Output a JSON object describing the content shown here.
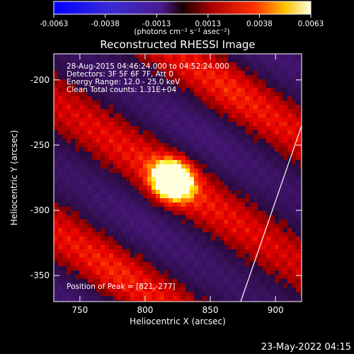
{
  "chart_data": {
    "type": "heatmap",
    "title": "Reconstructed RHESSI Image",
    "xlabel": "Heliocentric X (arcsec)",
    "ylabel": "Heliocentric Y (arcsec)",
    "xlim": [
      730,
      920
    ],
    "ylim": [
      -370,
      -180
    ],
    "x_ticks": [
      750,
      800,
      850,
      900
    ],
    "y_ticks": [
      -200,
      -250,
      -300,
      -350
    ],
    "colorbar": {
      "label": "(photons cm⁻² s⁻¹ asec⁻²)",
      "range": [
        -0.0063,
        0.0063
      ],
      "ticks": [
        "-0.0063",
        "-0.0038",
        "-0.0013",
        "0.0013",
        "0.0038",
        "0.0063"
      ]
    },
    "annotations": [
      "28-Aug-2015 04:46:24.000 to 04:52:24.000",
      "Detectors: 3F 5F 6F 7F, Att 0",
      "Energy Range: 12.0 - 25.0 keV",
      "Clean     Total counts: 1.31E+04"
    ],
    "peak": {
      "label": "Position of Peak = [821,-277]",
      "x": 821,
      "y": -277
    },
    "timestamp": "23-May-2022 04:15"
  }
}
